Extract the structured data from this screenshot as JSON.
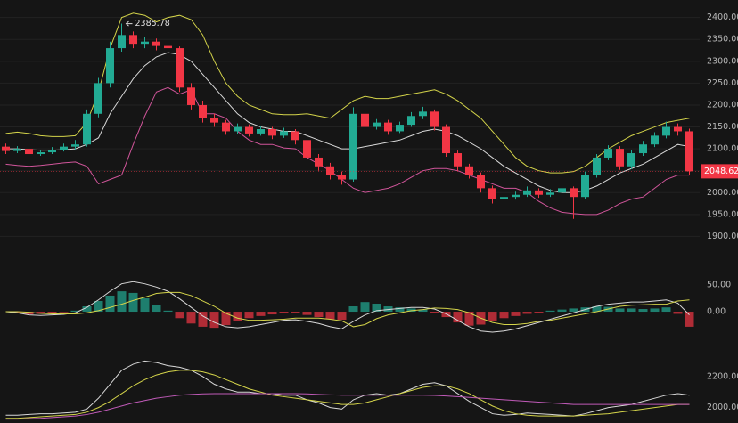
{
  "chart_data": [
    {
      "type": "candlestick",
      "up_color": "#22ab94",
      "down_color": "#f23645",
      "ylim": [
        1850,
        2440
      ],
      "yticks": [
        {
          "value": 2400,
          "label": "2400.00"
        },
        {
          "value": 2350,
          "label": "2350.00"
        },
        {
          "value": 2300,
          "label": "2300.00"
        },
        {
          "value": 2250,
          "label": "2250.00"
        },
        {
          "value": 2200,
          "label": "2200.00"
        },
        {
          "value": 2150,
          "label": "2150.00"
        },
        {
          "value": 2100,
          "label": "2100.00"
        },
        {
          "value": 2050,
          "label": "2050.00"
        },
        {
          "value": 2000,
          "label": "2000.00"
        },
        {
          "value": 1950,
          "label": "1950.00"
        },
        {
          "value": 1900,
          "label": "1900.00"
        }
      ],
      "grid": true,
      "high_label": 2385.78,
      "high_index": 10,
      "last_price": 2048.62,
      "last_color": "#f23645",
      "candles": [
        [
          2105,
          2112,
          2088,
          2095
        ],
        [
          2095,
          2106,
          2090,
          2100
        ],
        [
          2100,
          2104,
          2082,
          2088
        ],
        [
          2088,
          2098,
          2084,
          2092
        ],
        [
          2092,
          2104,
          2088,
          2098
        ],
        [
          2098,
          2112,
          2094,
          2105
        ],
        [
          2105,
          2120,
          2098,
          2110
        ],
        [
          2110,
          2190,
          2105,
          2180
        ],
        [
          2180,
          2262,
          2172,
          2250
        ],
        [
          2250,
          2345,
          2240,
          2330
        ],
        [
          2330,
          2386,
          2322,
          2360
        ],
        [
          2360,
          2368,
          2330,
          2340
        ],
        [
          2340,
          2356,
          2330,
          2345
        ],
        [
          2345,
          2352,
          2325,
          2335
        ],
        [
          2335,
          2342,
          2318,
          2330
        ],
        [
          2330,
          2334,
          2230,
          2240
        ],
        [
          2240,
          2250,
          2190,
          2200
        ],
        [
          2200,
          2210,
          2160,
          2170
        ],
        [
          2170,
          2180,
          2150,
          2160
        ],
        [
          2160,
          2166,
          2132,
          2140
        ],
        [
          2140,
          2158,
          2134,
          2150
        ],
        [
          2150,
          2156,
          2128,
          2135
        ],
        [
          2135,
          2152,
          2130,
          2145
        ],
        [
          2145,
          2150,
          2122,
          2130
        ],
        [
          2130,
          2148,
          2125,
          2140
        ],
        [
          2140,
          2145,
          2110,
          2120
        ],
        [
          2120,
          2126,
          2070,
          2080
        ],
        [
          2080,
          2088,
          2050,
          2060
        ],
        [
          2060,
          2068,
          2030,
          2040
        ],
        [
          2040,
          2048,
          2018,
          2030
        ],
        [
          2030,
          2195,
          2025,
          2180
        ],
        [
          2180,
          2186,
          2140,
          2150
        ],
        [
          2150,
          2168,
          2144,
          2160
        ],
        [
          2160,
          2166,
          2132,
          2140
        ],
        [
          2140,
          2162,
          2136,
          2155
        ],
        [
          2155,
          2184,
          2150,
          2175
        ],
        [
          2175,
          2196,
          2168,
          2185
        ],
        [
          2185,
          2190,
          2142,
          2150
        ],
        [
          2150,
          2156,
          2082,
          2090
        ],
        [
          2090,
          2096,
          2050,
          2060
        ],
        [
          2060,
          2066,
          2032,
          2040
        ],
        [
          2040,
          2046,
          2000,
          2010
        ],
        [
          2010,
          2016,
          1975,
          1985
        ],
        [
          1985,
          1998,
          1978,
          1990
        ],
        [
          1990,
          2002,
          1984,
          1995
        ],
        [
          1995,
          2014,
          1990,
          2005
        ],
        [
          2005,
          2010,
          1988,
          1995
        ],
        [
          1995,
          2008,
          1990,
          2000
        ],
        [
          2000,
          2018,
          1994,
          2010
        ],
        [
          2010,
          2014,
          1940,
          1990
        ],
        [
          1990,
          2048,
          1985,
          2040
        ],
        [
          2040,
          2088,
          2034,
          2080
        ],
        [
          2080,
          2108,
          2074,
          2100
        ],
        [
          2100,
          2106,
          2052,
          2060
        ],
        [
          2060,
          2098,
          2054,
          2090
        ],
        [
          2090,
          2118,
          2084,
          2110
        ],
        [
          2110,
          2138,
          2104,
          2130
        ],
        [
          2130,
          2162,
          2124,
          2150
        ],
        [
          2150,
          2158,
          2130,
          2140
        ],
        [
          2140,
          2146,
          2040,
          2048.62
        ]
      ],
      "series": [
        {
          "color": "#d4d44a",
          "values": [
            2135,
            2138,
            2135,
            2130,
            2128,
            2128,
            2130,
            2160,
            2230,
            2330,
            2400,
            2410,
            2405,
            2390,
            2400,
            2405,
            2395,
            2360,
            2300,
            2250,
            2220,
            2200,
            2190,
            2180,
            2178,
            2178,
            2180,
            2175,
            2170,
            2190,
            2210,
            2220,
            2215,
            2215,
            2220,
            2225,
            2230,
            2235,
            2225,
            2210,
            2190,
            2170,
            2140,
            2110,
            2080,
            2060,
            2050,
            2045,
            2045,
            2048,
            2060,
            2080,
            2100,
            2115,
            2130,
            2140,
            2150,
            2160,
            2165,
            2170
          ]
        },
        {
          "color": "#d8d8d8",
          "values": [
            2100,
            2100,
            2098,
            2097,
            2097,
            2098,
            2100,
            2110,
            2125,
            2180,
            2220,
            2260,
            2290,
            2310,
            2320,
            2315,
            2300,
            2270,
            2240,
            2210,
            2180,
            2160,
            2150,
            2145,
            2140,
            2140,
            2130,
            2120,
            2110,
            2100,
            2100,
            2105,
            2110,
            2115,
            2120,
            2130,
            2140,
            2145,
            2140,
            2130,
            2115,
            2100,
            2080,
            2060,
            2045,
            2030,
            2015,
            2005,
            2000,
            2000,
            2005,
            2015,
            2030,
            2045,
            2055,
            2065,
            2080,
            2095,
            2110,
            2105
          ]
        },
        {
          "color": "#d0559a",
          "values": [
            2065,
            2062,
            2060,
            2062,
            2065,
            2068,
            2070,
            2060,
            2020,
            2030,
            2040,
            2110,
            2175,
            2230,
            2240,
            2225,
            2235,
            2180,
            2180,
            2170,
            2140,
            2120,
            2110,
            2110,
            2102,
            2100,
            2080,
            2065,
            2050,
            2030,
            2010,
            2000,
            2005,
            2010,
            2020,
            2035,
            2050,
            2055,
            2055,
            2050,
            2040,
            2030,
            2020,
            2010,
            2010,
            2000,
            1980,
            1965,
            1955,
            1952,
            1950,
            1950,
            1960,
            1975,
            1985,
            1990,
            2010,
            2030,
            2040,
            2040
          ]
        }
      ]
    },
    {
      "type": "macd",
      "up_color": "#22ab94",
      "down_color": "#f23645",
      "ylim": [
        -58,
        83
      ],
      "yticks": [
        {
          "value": 50,
          "label": "50.00"
        },
        {
          "value": 0,
          "label": "0.00"
        }
      ],
      "histogram": [
        0,
        -3,
        -5,
        -4,
        -2,
        -1,
        2,
        10,
        20,
        30,
        38,
        35,
        25,
        12,
        2,
        -12,
        -22,
        -28,
        -30,
        -25,
        -18,
        -12,
        -8,
        -5,
        -2,
        -3,
        -6,
        -10,
        -14,
        -15,
        10,
        18,
        15,
        10,
        8,
        6,
        4,
        -2,
        -10,
        -20,
        -26,
        -24,
        -18,
        -12,
        -8,
        -4,
        -2,
        2,
        4,
        6,
        8,
        10,
        9,
        6,
        6,
        5,
        6,
        8,
        -4,
        -28
      ],
      "series": [
        {
          "color": "#d8d8d8",
          "values": [
            0,
            -2,
            -6,
            -7,
            -6,
            -5,
            -2,
            8,
            22,
            38,
            52,
            56,
            52,
            46,
            38,
            24,
            8,
            -8,
            -20,
            -28,
            -30,
            -28,
            -24,
            -20,
            -16,
            -15,
            -18,
            -22,
            -28,
            -32,
            -18,
            -6,
            2,
            4,
            6,
            8,
            8,
            5,
            -4,
            -16,
            -28,
            -36,
            -38,
            -36,
            -32,
            -26,
            -20,
            -14,
            -8,
            -2,
            4,
            10,
            14,
            16,
            18,
            18,
            20,
            22,
            16,
            -6
          ]
        },
        {
          "color": "#d4d44a",
          "values": [
            0,
            0,
            -1,
            -3,
            -4,
            -4,
            -4,
            -2,
            2,
            8,
            14,
            21,
            27,
            34,
            36,
            36,
            30,
            20,
            10,
            -3,
            -12,
            -16,
            -16,
            -15,
            -14,
            -12,
            -12,
            -12,
            -14,
            -17,
            -28,
            -24,
            -13,
            -6,
            -2,
            2,
            4,
            7,
            6,
            4,
            -2,
            -12,
            -20,
            -24,
            -24,
            -22,
            -18,
            -16,
            -12,
            -8,
            -4,
            0,
            5,
            10,
            12,
            13,
            14,
            14,
            20,
            22
          ]
        }
      ]
    },
    {
      "type": "line",
      "ylim": [
        1900,
        2360
      ],
      "yticks": [
        {
          "value": 2200,
          "label": "2200.00"
        },
        {
          "value": 2000,
          "label": "2000.00"
        }
      ],
      "series": [
        {
          "color": "#d8d8d8",
          "values": [
            1950,
            1950,
            1955,
            1960,
            1960,
            1965,
            1970,
            1990,
            2060,
            2150,
            2240,
            2280,
            2300,
            2290,
            2270,
            2260,
            2240,
            2200,
            2150,
            2120,
            2100,
            2100,
            2090,
            2090,
            2080,
            2080,
            2050,
            2030,
            2000,
            1990,
            2050,
            2080,
            2090,
            2080,
            2090,
            2120,
            2150,
            2160,
            2140,
            2090,
            2040,
            2000,
            1960,
            1950,
            1955,
            1965,
            1960,
            1955,
            1950,
            1945,
            1960,
            1980,
            2000,
            2010,
            2020,
            2040,
            2060,
            2080,
            2090,
            2080
          ]
        },
        {
          "color": "#d4d44a",
          "values": [
            1930,
            1930,
            1935,
            1940,
            1945,
            1950,
            1955,
            1970,
            2000,
            2040,
            2090,
            2140,
            2180,
            2210,
            2230,
            2240,
            2240,
            2230,
            2210,
            2180,
            2150,
            2120,
            2100,
            2080,
            2070,
            2060,
            2050,
            2040,
            2030,
            2020,
            2020,
            2030,
            2050,
            2070,
            2090,
            2110,
            2130,
            2140,
            2140,
            2120,
            2090,
            2050,
            2010,
            1980,
            1960,
            1950,
            1945,
            1945,
            1945,
            1945,
            1950,
            1955,
            1960,
            1970,
            1980,
            1990,
            2000,
            2010,
            2020,
            2020
          ]
        },
        {
          "color": "#c05ab8",
          "values": [
            1925,
            1925,
            1928,
            1930,
            1935,
            1940,
            1945,
            1955,
            1970,
            1990,
            2010,
            2030,
            2045,
            2060,
            2070,
            2080,
            2085,
            2088,
            2090,
            2090,
            2090,
            2090,
            2090,
            2090,
            2090,
            2090,
            2088,
            2085,
            2082,
            2080,
            2080,
            2080,
            2080,
            2080,
            2080,
            2080,
            2080,
            2078,
            2075,
            2070,
            2065,
            2060,
            2055,
            2050,
            2045,
            2040,
            2035,
            2030,
            2025,
            2020,
            2020,
            2020,
            2020,
            2020,
            2020,
            2020,
            2020,
            2020,
            2020,
            2020
          ]
        }
      ]
    }
  ]
}
